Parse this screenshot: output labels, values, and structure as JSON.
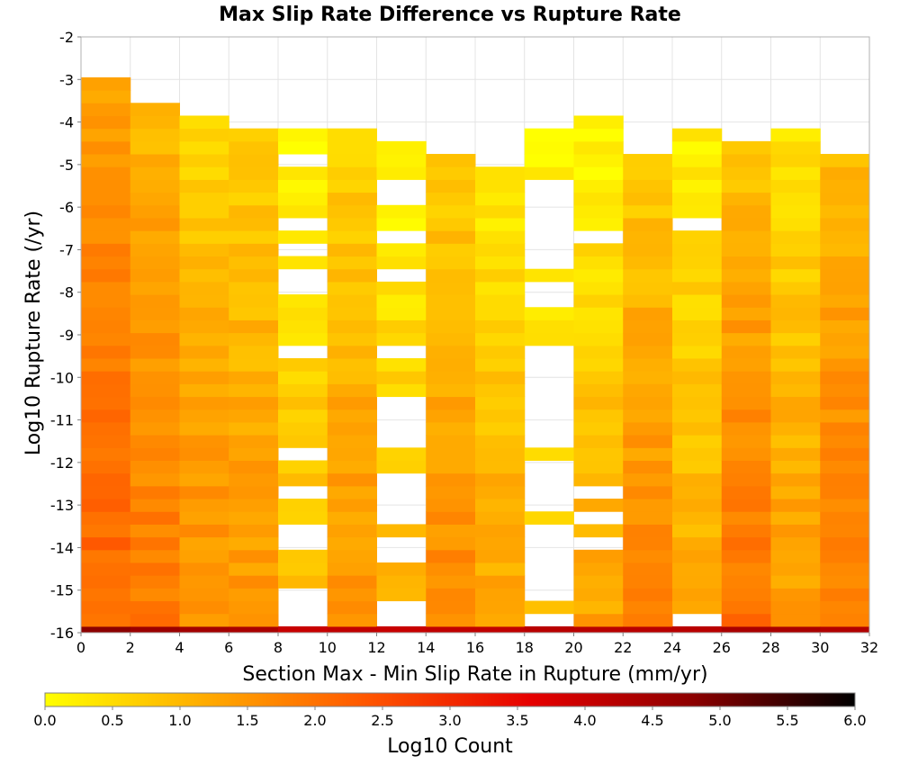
{
  "chart_data": {
    "type": "heatmap",
    "title": "Max Slip Rate Difference vs Rupture Rate",
    "xlabel": "Section Max - Min Slip Rate in Rupture (mm/yr)",
    "ylabel": "Log10 Rupture Rate (/yr)",
    "xlim": [
      0,
      32
    ],
    "ylim": [
      -16,
      -2
    ],
    "x_bin_width": 2,
    "y_bin_height": 0.3,
    "x_ticks": [
      "0",
      "2",
      "4",
      "6",
      "8",
      "10",
      "12",
      "14",
      "16",
      "18",
      "20",
      "22",
      "24",
      "26",
      "28",
      "30",
      "32"
    ],
    "y_ticks": [
      "-2",
      "-3",
      "-4",
      "-5",
      "-6",
      "-7",
      "-8",
      "-9",
      "-10",
      "-11",
      "-12",
      "-13",
      "-14",
      "-15",
      "-16"
    ],
    "colorbar": {
      "label": "Log10 Count",
      "range": [
        0,
        6
      ],
      "ticks": [
        "0.0",
        "0.5",
        "1.0",
        "1.5",
        "2.0",
        "2.5",
        "3.0",
        "3.5",
        "4.0",
        "4.5",
        "5.0",
        "5.5",
        "6.0"
      ],
      "colors": [
        "#ffff00",
        "#ffaa00",
        "#ff5500",
        "#e60000",
        "#8c0000",
        "#000000"
      ]
    },
    "columns": [
      {
        "x": 0,
        "top": -3.0,
        "vmax": 2.2,
        "vmin": 1.3,
        "bottom_value": 4.8,
        "gaps": []
      },
      {
        "x": 2,
        "top": -3.6,
        "vmax": 1.9,
        "vmin": 1.0,
        "bottom_value": 4.6,
        "gaps": []
      },
      {
        "x": 4,
        "top": -3.9,
        "vmax": 1.6,
        "vmin": 0.6,
        "bottom_value": 4.5,
        "gaps": []
      },
      {
        "x": 6,
        "top": -4.2,
        "vmax": 1.5,
        "vmin": 0.6,
        "bottom_value": 4.4,
        "gaps": []
      },
      {
        "x": 8,
        "top": -4.2,
        "vmax": 1.0,
        "vmin": 0.1,
        "bottom_value": 4.0,
        "gaps": [
          [
            -5.0,
            -4.7
          ],
          [
            -6.5,
            -6.2
          ],
          [
            -7.1,
            -6.8
          ],
          [
            -8.1,
            -7.4
          ],
          [
            -9.6,
            -9.3
          ],
          [
            -12.0,
            -11.7
          ],
          [
            -12.9,
            -12.6
          ],
          [
            -13.8,
            -13.5
          ],
          [
            -14.1,
            -13.8
          ],
          [
            -16.0,
            -15.0
          ]
        ]
      },
      {
        "x": 10,
        "top": -4.2,
        "vmax": 1.5,
        "vmin": 0.6,
        "bottom_value": 4.1,
        "gaps": []
      },
      {
        "x": 12,
        "top": -4.4,
        "vmax": 1.0,
        "vmin": 0.1,
        "bottom_value": 4.0,
        "gaps": [
          [
            -5.9,
            -5.3
          ],
          [
            -6.9,
            -6.5
          ],
          [
            -7.8,
            -7.4
          ],
          [
            -9.6,
            -9.2
          ],
          [
            -10.9,
            -10.6
          ],
          [
            -11.5,
            -11.2
          ],
          [
            -12.7,
            -12.2
          ],
          [
            -13.3,
            -12.9
          ],
          [
            -14.1,
            -13.8
          ],
          [
            -14.4,
            -14.1
          ],
          [
            -16.0,
            -15.3
          ]
        ]
      },
      {
        "x": 14,
        "top": -4.7,
        "vmax": 1.7,
        "vmin": 0.6,
        "bottom_value": 4.1,
        "gaps": []
      },
      {
        "x": 16,
        "top": -5.0,
        "vmax": 1.3,
        "vmin": 0.2,
        "bottom_value": 4.1,
        "gaps": [
          [
            -6.9,
            -6.7
          ]
        ]
      },
      {
        "x": 18,
        "top": -4.2,
        "vmax": 0.9,
        "vmin": 0.1,
        "bottom_value": 4.2,
        "gaps": [
          [
            -7.4,
            -5.3
          ],
          [
            -7.9,
            -7.7
          ],
          [
            -8.4,
            -8.2
          ],
          [
            -11.2,
            -9.2
          ],
          [
            -11.5,
            -11.2
          ],
          [
            -13.0,
            -11.8
          ],
          [
            -14.9,
            -13.4
          ],
          [
            -15.2,
            -15.0
          ],
          [
            -15.7,
            -15.4
          ]
        ]
      },
      {
        "x": 20,
        "top": -3.9,
        "vmax": 1.3,
        "vmin": 0.0,
        "bottom_value": 4.2,
        "gaps": [
          [
            -6.8,
            -6.5
          ],
          [
            -12.9,
            -12.6
          ],
          [
            -13.3,
            -13.2
          ],
          [
            -13.9,
            -13.8
          ]
        ]
      },
      {
        "x": 22,
        "top": -4.7,
        "vmax": 1.7,
        "vmin": 0.7,
        "bottom_value": 4.2,
        "gaps": []
      },
      {
        "x": 24,
        "top": -4.2,
        "vmax": 1.2,
        "vmin": 0.2,
        "bottom_value": 4.2,
        "gaps": [
          [
            -6.5,
            -6.2
          ],
          [
            -15.7,
            -15.4
          ]
        ]
      },
      {
        "x": 26,
        "top": -4.4,
        "vmax": 2.0,
        "vmin": 0.8,
        "bottom_value": 4.4,
        "gaps": []
      },
      {
        "x": 28,
        "top": -4.2,
        "vmax": 1.4,
        "vmin": 0.4,
        "bottom_value": 4.4,
        "gaps": []
      },
      {
        "x": 30,
        "top": -4.7,
        "vmax": 1.8,
        "vmin": 1.0,
        "bottom_value": 4.3,
        "gaps": []
      }
    ]
  }
}
